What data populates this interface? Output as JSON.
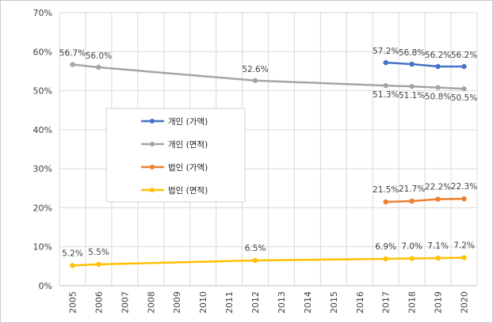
{
  "chart_data": {
    "type": "line",
    "title": "",
    "xlabel": "",
    "ylabel": "",
    "x": [
      "2005",
      "2006",
      "2007",
      "2008",
      "2009",
      "2010",
      "2011",
      "2012",
      "2013",
      "2014",
      "2015",
      "2016",
      "2017",
      "2018",
      "2019",
      "2020"
    ],
    "ylim": [
      0,
      70
    ],
    "yticks": [
      "0%",
      "10%",
      "20%",
      "30%",
      "40%",
      "50%",
      "60%",
      "70%"
    ],
    "grid": true,
    "legend_position": "middle-left",
    "series": [
      {
        "name": "개인 (가액)",
        "color": "#4472C4",
        "points": [
          {
            "x": "2017",
            "y": 57.2,
            "label": "57.2%"
          },
          {
            "x": "2018",
            "y": 56.8,
            "label": "56.8%"
          },
          {
            "x": "2019",
            "y": 56.2,
            "label": "56.2%"
          },
          {
            "x": "2020",
            "y": 56.2,
            "label": "56.2%"
          }
        ]
      },
      {
        "name": "개인 (면적)",
        "color": "#A5A5A5",
        "points": [
          {
            "x": "2005",
            "y": 56.7,
            "label": "56.7%"
          },
          {
            "x": "2006",
            "y": 56.0,
            "label": "56.0%"
          },
          {
            "x": "2012",
            "y": 52.6,
            "label": "52.6%"
          },
          {
            "x": "2017",
            "y": 51.3,
            "label": "51.3%"
          },
          {
            "x": "2018",
            "y": 51.1,
            "label": "51.1%"
          },
          {
            "x": "2019",
            "y": 50.8,
            "label": "50.8%"
          },
          {
            "x": "2020",
            "y": 50.5,
            "label": "50.5%"
          }
        ]
      },
      {
        "name": "법인 (가액)",
        "color": "#ED7D31",
        "points": [
          {
            "x": "2017",
            "y": 21.5,
            "label": "21.5%"
          },
          {
            "x": "2018",
            "y": 21.7,
            "label": "21.7%"
          },
          {
            "x": "2019",
            "y": 22.2,
            "label": "22.2%"
          },
          {
            "x": "2020",
            "y": 22.3,
            "label": "22.3%"
          }
        ]
      },
      {
        "name": "법인 (면적)",
        "color": "#FFC000",
        "points": [
          {
            "x": "2005",
            "y": 5.2,
            "label": "5.2%"
          },
          {
            "x": "2006",
            "y": 5.5,
            "label": "5.5%"
          },
          {
            "x": "2012",
            "y": 6.5,
            "label": "6.5%"
          },
          {
            "x": "2017",
            "y": 6.9,
            "label": "6.9%"
          },
          {
            "x": "2018",
            "y": 7.0,
            "label": "7.0%"
          },
          {
            "x": "2019",
            "y": 7.1,
            "label": "7.1%"
          },
          {
            "x": "2020",
            "y": 7.2,
            "label": "7.2%"
          }
        ]
      }
    ]
  }
}
